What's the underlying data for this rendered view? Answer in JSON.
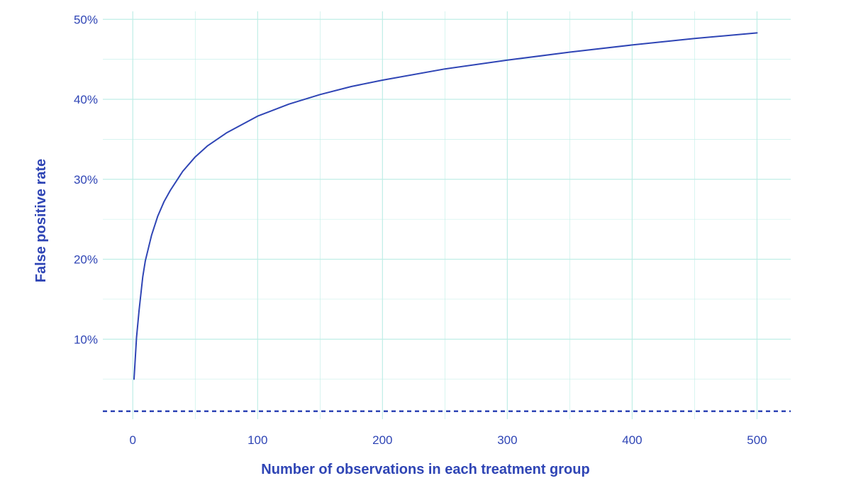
{
  "chart_data": {
    "type": "line",
    "title": "",
    "xlabel": "Number of observations in each treatment group",
    "ylabel": "False positive rate",
    "xlim": [
      -24,
      527
    ],
    "ylim": [
      0,
      51
    ],
    "x_ticks": [
      0,
      100,
      200,
      300,
      400,
      500
    ],
    "x_tick_labels": [
      "0",
      "100",
      "200",
      "300",
      "400",
      "500"
    ],
    "y_ticks": [
      10,
      20,
      30,
      40,
      50
    ],
    "y_tick_labels": [
      "10%",
      "20%",
      "30%",
      "40%",
      "50%"
    ],
    "grid": true,
    "legend": "none",
    "colors": {
      "line": "#2f45b5",
      "text": "#2f45b5",
      "grid": "#bfeee6"
    },
    "series": [
      {
        "x": [
          1,
          3,
          5,
          8,
          10,
          15,
          20,
          25,
          30,
          40,
          50,
          60,
          75,
          100,
          125,
          150,
          175,
          200,
          250,
          300,
          350,
          400,
          450,
          500
        ],
        "values": [
          5.0,
          10.2,
          13.6,
          17.8,
          19.8,
          23.0,
          25.4,
          27.2,
          28.6,
          31.0,
          32.8,
          34.2,
          35.8,
          37.9,
          39.4,
          40.6,
          41.6,
          42.4,
          43.8,
          44.9,
          45.9,
          46.8,
          47.6,
          48.3
        ]
      }
    ],
    "reference_line": {
      "y": 1,
      "style": "dashed"
    }
  }
}
